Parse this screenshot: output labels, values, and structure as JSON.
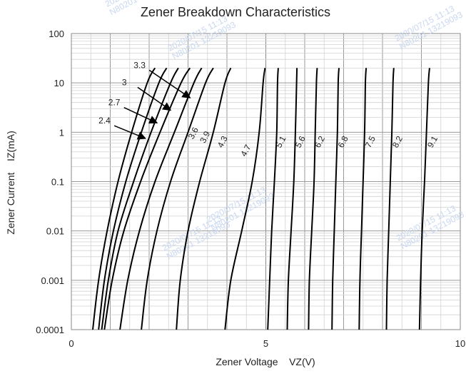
{
  "chart_data": {
    "type": "line",
    "title": "Zener Breakdown Characteristics",
    "xlabel": "Zener Voltage    VZ(V)",
    "ylabel": "Zener Current    IZ(mA)",
    "xlim": [
      0,
      10
    ],
    "ylim": [
      0.0001,
      100
    ],
    "y_scale": "log",
    "grid": true,
    "x_ticks": [
      "0",
      "5",
      "10"
    ],
    "y_ticks": [
      "0.0001",
      "0.001",
      "0.01",
      "0.1",
      "1",
      "10",
      "100"
    ],
    "series": [
      {
        "name": "2.4",
        "points": [
          [
            0.55,
            0.0001
          ],
          [
            0.7,
            0.001
          ],
          [
            0.92,
            0.01
          ],
          [
            1.2,
            0.1
          ],
          [
            1.55,
            1
          ],
          [
            1.95,
            10
          ],
          [
            2.15,
            20
          ]
        ]
      },
      {
        "name": "2.7",
        "points": [
          [
            0.7,
            0.0001
          ],
          [
            0.85,
            0.001
          ],
          [
            1.08,
            0.01
          ],
          [
            1.4,
            0.1
          ],
          [
            1.8,
            1
          ],
          [
            2.25,
            10
          ],
          [
            2.45,
            20
          ]
        ]
      },
      {
        "name": "3",
        "points": [
          [
            0.78,
            0.0001
          ],
          [
            0.95,
            0.001
          ],
          [
            1.2,
            0.01
          ],
          [
            1.6,
            0.1
          ],
          [
            2.05,
            1
          ],
          [
            2.55,
            10
          ],
          [
            2.75,
            20
          ]
        ]
      },
      {
        "name": "3.3",
        "points": [
          [
            0.85,
            0.0001
          ],
          [
            1.05,
            0.001
          ],
          [
            1.35,
            0.01
          ],
          [
            1.78,
            0.1
          ],
          [
            2.28,
            1
          ],
          [
            2.82,
            10
          ],
          [
            3.05,
            20
          ]
        ]
      },
      {
        "name": "3.6",
        "points": [
          [
            1.25,
            0.0001
          ],
          [
            1.45,
            0.001
          ],
          [
            1.75,
            0.01
          ],
          [
            2.15,
            0.1
          ],
          [
            2.65,
            1
          ],
          [
            3.15,
            10
          ],
          [
            3.35,
            20
          ]
        ]
      },
      {
        "name": "3.9",
        "points": [
          [
            1.8,
            0.0001
          ],
          [
            1.95,
            0.001
          ],
          [
            2.2,
            0.01
          ],
          [
            2.55,
            0.1
          ],
          [
            3.0,
            1
          ],
          [
            3.45,
            10
          ],
          [
            3.65,
            20
          ]
        ]
      },
      {
        "name": "4.3",
        "points": [
          [
            2.7,
            0.0001
          ],
          [
            2.8,
            0.001
          ],
          [
            3.0,
            0.01
          ],
          [
            3.3,
            0.1
          ],
          [
            3.65,
            1
          ],
          [
            3.95,
            10
          ],
          [
            4.1,
            20
          ]
        ]
      },
      {
        "name": "4.7",
        "points": [
          [
            3.95,
            0.0001
          ],
          [
            4.1,
            0.001
          ],
          [
            4.38,
            0.01
          ],
          [
            4.65,
            0.1
          ],
          [
            4.83,
            1
          ],
          [
            4.93,
            10
          ],
          [
            4.98,
            20
          ]
        ]
      },
      {
        "name": "5.1",
        "points": [
          [
            5.05,
            0.0001
          ],
          [
            5.1,
            0.001
          ],
          [
            5.15,
            0.01
          ],
          [
            5.22,
            0.1
          ],
          [
            5.28,
            1
          ],
          [
            5.3,
            10
          ],
          [
            5.32,
            20
          ]
        ]
      },
      {
        "name": "5.6",
        "points": [
          [
            5.55,
            0.0001
          ],
          [
            5.58,
            0.001
          ],
          [
            5.65,
            0.01
          ],
          [
            5.72,
            0.1
          ],
          [
            5.76,
            1
          ],
          [
            5.79,
            10
          ],
          [
            5.8,
            20
          ]
        ]
      },
      {
        "name": "6.2",
        "points": [
          [
            6.1,
            0.0001
          ],
          [
            6.12,
            0.001
          ],
          [
            6.18,
            0.01
          ],
          [
            6.24,
            0.1
          ],
          [
            6.27,
            1
          ],
          [
            6.3,
            10
          ],
          [
            6.32,
            20
          ]
        ]
      },
      {
        "name": "6.8",
        "points": [
          [
            6.7,
            0.0001
          ],
          [
            6.72,
            0.001
          ],
          [
            6.76,
            0.01
          ],
          [
            6.8,
            0.1
          ],
          [
            6.84,
            1
          ],
          [
            6.86,
            10
          ],
          [
            6.88,
            20
          ]
        ]
      },
      {
        "name": "7.5",
        "points": [
          [
            7.4,
            0.0001
          ],
          [
            7.42,
            0.001
          ],
          [
            7.46,
            0.01
          ],
          [
            7.5,
            0.1
          ],
          [
            7.54,
            1
          ],
          [
            7.56,
            10
          ],
          [
            7.58,
            20
          ]
        ]
      },
      {
        "name": "8.2",
        "points": [
          [
            8.1,
            0.0001
          ],
          [
            8.12,
            0.001
          ],
          [
            8.16,
            0.01
          ],
          [
            8.2,
            0.1
          ],
          [
            8.24,
            1
          ],
          [
            8.27,
            10
          ],
          [
            8.29,
            20
          ]
        ]
      },
      {
        "name": "9.1",
        "points": [
          [
            8.95,
            0.0001
          ],
          [
            8.98,
            0.001
          ],
          [
            9.02,
            0.01
          ],
          [
            9.08,
            0.1
          ],
          [
            9.13,
            1
          ],
          [
            9.18,
            10
          ],
          [
            9.21,
            20
          ]
        ]
      }
    ],
    "curve_labels": [
      {
        "text": "3.3",
        "style": "arrow",
        "pos": [
          1.6,
          20
        ],
        "target": [
          3.05,
          5.0
        ]
      },
      {
        "text": "3",
        "style": "arrow",
        "pos": [
          1.3,
          9
        ],
        "target": [
          2.55,
          2.8
        ]
      },
      {
        "text": "2.7",
        "style": "arrow",
        "pos": [
          0.95,
          3.5
        ],
        "target": [
          2.2,
          1.55
        ]
      },
      {
        "text": "2.4",
        "style": "arrow",
        "pos": [
          0.7,
          1.5
        ],
        "target": [
          1.9,
          0.75
        ]
      },
      {
        "text": "3.6",
        "style": "rotated",
        "pos": [
          3.2,
          0.9
        ]
      },
      {
        "text": "3.9",
        "style": "rotated",
        "pos": [
          3.5,
          0.75
        ]
      },
      {
        "text": "4.3",
        "style": "rotated",
        "pos": [
          3.95,
          0.6
        ]
      },
      {
        "text": "4.7",
        "style": "rotated",
        "pos": [
          4.55,
          0.4
        ]
      },
      {
        "text": "5.1",
        "style": "rotated",
        "pos": [
          5.45,
          0.6
        ]
      },
      {
        "text": "5.6",
        "style": "rotated",
        "pos": [
          5.95,
          0.6
        ]
      },
      {
        "text": "6.2",
        "style": "rotated",
        "pos": [
          6.45,
          0.6
        ]
      },
      {
        "text": "6.8",
        "style": "rotated",
        "pos": [
          7.05,
          0.6
        ]
      },
      {
        "text": "7.5",
        "style": "rotated",
        "pos": [
          7.75,
          0.6
        ]
      },
      {
        "text": "8.2",
        "style": "rotated",
        "pos": [
          8.45,
          0.6
        ]
      },
      {
        "text": "9.1",
        "style": "rotated",
        "pos": [
          9.35,
          0.6
        ]
      }
    ],
    "watermarks": [
      "2020/07/15 11:13",
      "N80201 13219093"
    ],
    "colors": {
      "curve": "#000000",
      "grid_major": "#9a9a9a",
      "grid_minor": "#d2d2d2",
      "watermark": "#c9d7f0"
    }
  }
}
